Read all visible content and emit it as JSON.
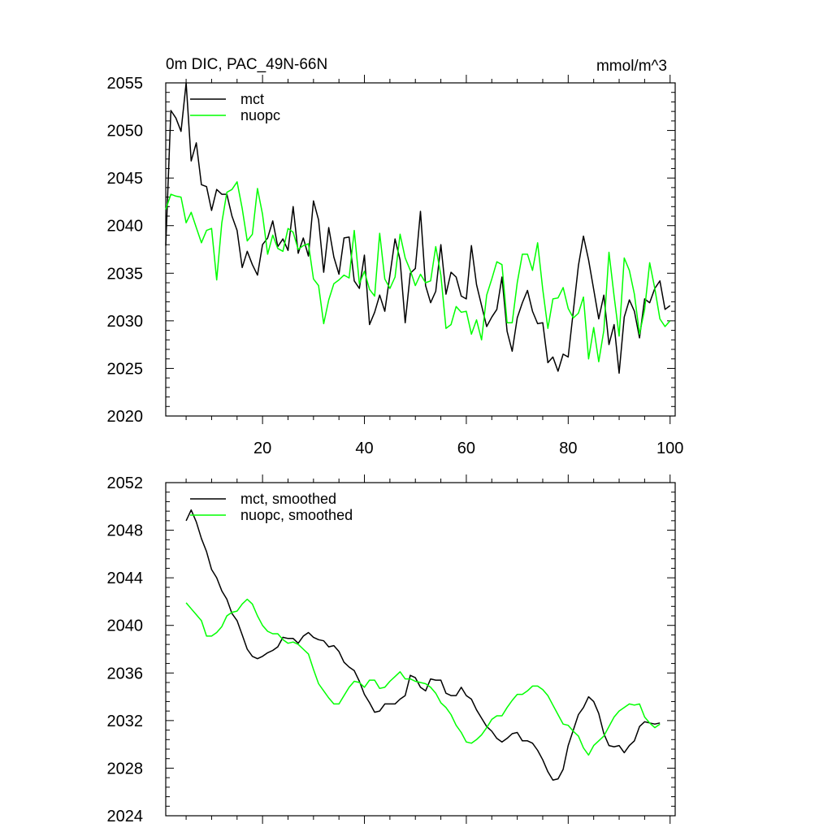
{
  "chart_data": [
    {
      "type": "line",
      "title": "0m DIC, PAC_49N-66N",
      "units": "mmol/m^3",
      "xlabel": "",
      "ylabel": "",
      "xlim": [
        1,
        101
      ],
      "ylim": [
        2020,
        2055
      ],
      "xticks": [
        20,
        40,
        60,
        80,
        100
      ],
      "yticks": [
        2020,
        2025,
        2030,
        2035,
        2040,
        2045,
        2050,
        2055
      ],
      "legend_position": "top-left",
      "series": [
        {
          "name": "mct",
          "color": "#000000",
          "x": [
            1,
            2,
            3,
            4,
            5,
            6,
            7,
            8,
            9,
            10,
            11,
            12,
            13,
            14,
            15,
            16,
            17,
            18,
            19,
            20,
            21,
            22,
            23,
            24,
            25,
            26,
            27,
            28,
            29,
            30,
            31,
            32,
            33,
            34,
            35,
            36,
            37,
            38,
            39,
            40,
            41,
            42,
            43,
            44,
            45,
            46,
            47,
            48,
            49,
            50,
            51,
            52,
            53,
            54,
            55,
            56,
            57,
            58,
            59,
            60,
            61,
            62,
            63,
            64,
            65,
            66,
            67,
            68,
            69,
            70,
            71,
            72,
            73,
            74,
            75,
            76,
            77,
            78,
            79,
            80,
            81,
            82,
            83,
            84,
            85,
            86,
            87,
            88,
            89,
            90,
            91,
            92,
            93,
            94,
            95,
            96,
            97,
            98,
            99,
            100
          ],
          "values": [
            2037.9,
            2052.1,
            2051.3,
            2049.9,
            2055.0,
            2046.8,
            2048.7,
            2044.3,
            2044.1,
            2041.6,
            2043.8,
            2043.3,
            2043.3,
            2041.0,
            2039.5,
            2035.6,
            2037.3,
            2035.9,
            2034.8,
            2038.0,
            2038.7,
            2040.5,
            2037.8,
            2038.6,
            2037.4,
            2042.0,
            2037.1,
            2038.7,
            2036.8,
            2042.6,
            2040.6,
            2035.1,
            2039.8,
            2036.7,
            2034.9,
            2038.7,
            2038.8,
            2034.2,
            2033.4,
            2036.9,
            2029.6,
            2030.9,
            2032.7,
            2031.0,
            2034.8,
            2038.6,
            2036.4,
            2029.8,
            2035.0,
            2035.5,
            2041.5,
            2033.7,
            2031.9,
            2033.1,
            2038.0,
            2032.8,
            2035.1,
            2034.6,
            2032.6,
            2032.3,
            2037.9,
            2033.8,
            2031.6,
            2029.4,
            2030.4,
            2031.2,
            2034.6,
            2028.9,
            2026.8,
            2030.3,
            2031.9,
            2033.2,
            2031.0,
            2029.7,
            2029.8,
            2025.6,
            2026.2,
            2024.7,
            2026.5,
            2026.2,
            2031.0,
            2035.8,
            2038.9,
            2036.4,
            2033.3,
            2030.2,
            2032.7,
            2027.5,
            2029.6,
            2024.5,
            2030.4,
            2032.2,
            2031.0,
            2028.2,
            2032.3,
            2031.9,
            2033.4,
            2034.2,
            2031.2,
            2031.6
          ]
        },
        {
          "name": "nuopc",
          "color": "#00ff00",
          "x": [
            1,
            2,
            3,
            4,
            5,
            6,
            7,
            8,
            9,
            10,
            11,
            12,
            13,
            14,
            15,
            16,
            17,
            18,
            19,
            20,
            21,
            22,
            23,
            24,
            25,
            26,
            27,
            28,
            29,
            30,
            31,
            32,
            33,
            34,
            35,
            36,
            37,
            38,
            39,
            40,
            41,
            42,
            43,
            44,
            45,
            46,
            47,
            48,
            49,
            50,
            51,
            52,
            53,
            54,
            55,
            56,
            57,
            58,
            59,
            60,
            61,
            62,
            63,
            64,
            65,
            66,
            67,
            68,
            69,
            70,
            71,
            72,
            73,
            74,
            75,
            76,
            77,
            78,
            79,
            80,
            81,
            82,
            83,
            84,
            85,
            86,
            87,
            88,
            89,
            90,
            91,
            92,
            93,
            94,
            95,
            96,
            97,
            98,
            99,
            100
          ],
          "values": [
            2041.7,
            2043.3,
            2043.1,
            2043.0,
            2040.3,
            2041.4,
            2039.8,
            2038.2,
            2039.5,
            2039.7,
            2034.3,
            2040.3,
            2043.5,
            2043.8,
            2044.6,
            2041.8,
            2038.4,
            2039.1,
            2043.9,
            2041.2,
            2037.0,
            2039.0,
            2037.6,
            2037.3,
            2039.7,
            2039.3,
            2037.5,
            2037.9,
            2038.1,
            2034.4,
            2033.7,
            2029.7,
            2032.2,
            2033.9,
            2034.3,
            2034.8,
            2034.5,
            2039.5,
            2033.9,
            2035.2,
            2033.3,
            2032.6,
            2039.2,
            2034.4,
            2033.4,
            2034.6,
            2039.1,
            2036.6,
            2035.3,
            2033.7,
            2034.9,
            2034.0,
            2034.2,
            2037.8,
            2034.8,
            2029.2,
            2029.6,
            2031.5,
            2030.9,
            2031.0,
            2028.6,
            2030.1,
            2028.0,
            2032.7,
            2034.4,
            2036.2,
            2035.9,
            2029.8,
            2029.8,
            2034.0,
            2037.0,
            2037.0,
            2035.3,
            2038.2,
            2033.3,
            2029.2,
            2032.3,
            2032.4,
            2033.5,
            2031.3,
            2030.3,
            2030.8,
            2032.5,
            2026.0,
            2029.3,
            2025.7,
            2029.0,
            2037.2,
            2032.6,
            2028.4,
            2036.6,
            2035.3,
            2032.8,
            2028.6,
            2031.2,
            2036.1,
            2033.4,
            2030.2,
            2029.4,
            2030.0
          ]
        }
      ]
    },
    {
      "type": "line",
      "title": "",
      "xlabel": "",
      "ylabel": "",
      "xlim": [
        1,
        101
      ],
      "ylim": [
        2024,
        2052
      ],
      "xticks": [
        20,
        40,
        60,
        80,
        100
      ],
      "yticks": [
        2024,
        2028,
        2032,
        2036,
        2040,
        2044,
        2048,
        2052
      ],
      "legend_position": "top-left",
      "series": [
        {
          "name": "mct, smoothed",
          "color": "#000000",
          "x": [
            5,
            6,
            7,
            8,
            9,
            10,
            11,
            12,
            13,
            14,
            15,
            16,
            17,
            18,
            19,
            20,
            21,
            22,
            23,
            24,
            25,
            26,
            27,
            28,
            29,
            30,
            31,
            32,
            33,
            34,
            35,
            36,
            37,
            38,
            39,
            40,
            41,
            42,
            43,
            44,
            45,
            46,
            47,
            48,
            49,
            50,
            51,
            52,
            53,
            54,
            55,
            56,
            57,
            58,
            59,
            60,
            61,
            62,
            63,
            64,
            65,
            66,
            67,
            68,
            69,
            70,
            71,
            72,
            73,
            74,
            75,
            76,
            77,
            78,
            79,
            80,
            81,
            82,
            83,
            84,
            85,
            86,
            87,
            88,
            89,
            90,
            91,
            92,
            93,
            94,
            95,
            96,
            97,
            98
          ],
          "values": [
            2048.8,
            2049.7,
            2048.7,
            2047.3,
            2046.2,
            2044.7,
            2044.0,
            2042.9,
            2042.2,
            2041.0,
            2040.4,
            2039.2,
            2038.0,
            2037.4,
            2037.2,
            2037.4,
            2037.7,
            2037.9,
            2038.2,
            2039.0,
            2038.9,
            2038.9,
            2038.5,
            2039.1,
            2039.4,
            2039.0,
            2038.8,
            2038.7,
            2038.2,
            2038.3,
            2037.8,
            2036.9,
            2036.5,
            2036.2,
            2035.3,
            2034.2,
            2033.5,
            2032.7,
            2032.8,
            2033.4,
            2033.4,
            2033.4,
            2033.8,
            2034.1,
            2035.8,
            2035.6,
            2034.8,
            2034.5,
            2035.5,
            2035.4,
            2035.4,
            2034.3,
            2034.1,
            2034.1,
            2034.8,
            2034.1,
            2033.8,
            2032.9,
            2032.2,
            2031.5,
            2031.1,
            2030.5,
            2030.2,
            2030.5,
            2030.9,
            2031.0,
            2030.3,
            2030.3,
            2030.1,
            2029.5,
            2028.7,
            2027.7,
            2027.0,
            2027.1,
            2027.9,
            2029.9,
            2031.2,
            2032.5,
            2033.1,
            2034.0,
            2033.6,
            2032.6,
            2030.9,
            2029.9,
            2029.8,
            2029.9,
            2029.3,
            2029.9,
            2030.3,
            2031.5,
            2031.9,
            2031.8,
            2031.7,
            2031.8
          ]
        },
        {
          "name": "nuopc, smoothed",
          "color": "#00ff00",
          "x": [
            5,
            6,
            7,
            8,
            9,
            10,
            11,
            12,
            13,
            14,
            15,
            16,
            17,
            18,
            19,
            20,
            21,
            22,
            23,
            24,
            25,
            26,
            27,
            28,
            29,
            30,
            31,
            32,
            33,
            34,
            35,
            36,
            37,
            38,
            39,
            40,
            41,
            42,
            43,
            44,
            45,
            46,
            47,
            48,
            49,
            50,
            51,
            52,
            53,
            54,
            55,
            56,
            57,
            58,
            59,
            60,
            61,
            62,
            63,
            64,
            65,
            66,
            67,
            68,
            69,
            70,
            71,
            72,
            73,
            74,
            75,
            76,
            77,
            78,
            79,
            80,
            81,
            82,
            83,
            84,
            85,
            86,
            87,
            88,
            89,
            90,
            91,
            92,
            93,
            94,
            95,
            96,
            97,
            98
          ],
          "values": [
            2041.9,
            2041.4,
            2040.9,
            2040.4,
            2039.1,
            2039.1,
            2039.4,
            2039.9,
            2040.8,
            2041.1,
            2041.2,
            2041.8,
            2042.2,
            2041.8,
            2040.8,
            2040.0,
            2039.5,
            2039.3,
            2039.3,
            2038.8,
            2038.5,
            2038.6,
            2038.4,
            2038.0,
            2037.6,
            2036.3,
            2035.1,
            2034.5,
            2033.9,
            2033.4,
            2033.4,
            2034.1,
            2034.8,
            2035.3,
            2035.2,
            2034.8,
            2035.4,
            2035.4,
            2034.7,
            2034.8,
            2035.3,
            2035.7,
            2036.1,
            2035.5,
            2035.5,
            2035.3,
            2035.2,
            2035.1,
            2034.8,
            2034.3,
            2033.5,
            2033.1,
            2032.5,
            2031.6,
            2031.0,
            2030.2,
            2030.1,
            2030.4,
            2030.8,
            2031.4,
            2032.1,
            2032.4,
            2032.4,
            2033.1,
            2033.7,
            2034.2,
            2034.2,
            2034.5,
            2034.9,
            2034.9,
            2034.6,
            2034.1,
            2033.3,
            2032.5,
            2031.7,
            2031.6,
            2031.1,
            2030.7,
            2029.7,
            2029.1,
            2029.9,
            2030.3,
            2030.7,
            2031.5,
            2032.3,
            2032.8,
            2033.1,
            2033.4,
            2033.3,
            2033.4,
            2032.3,
            2031.8,
            2031.4,
            2031.7
          ]
        }
      ]
    }
  ]
}
